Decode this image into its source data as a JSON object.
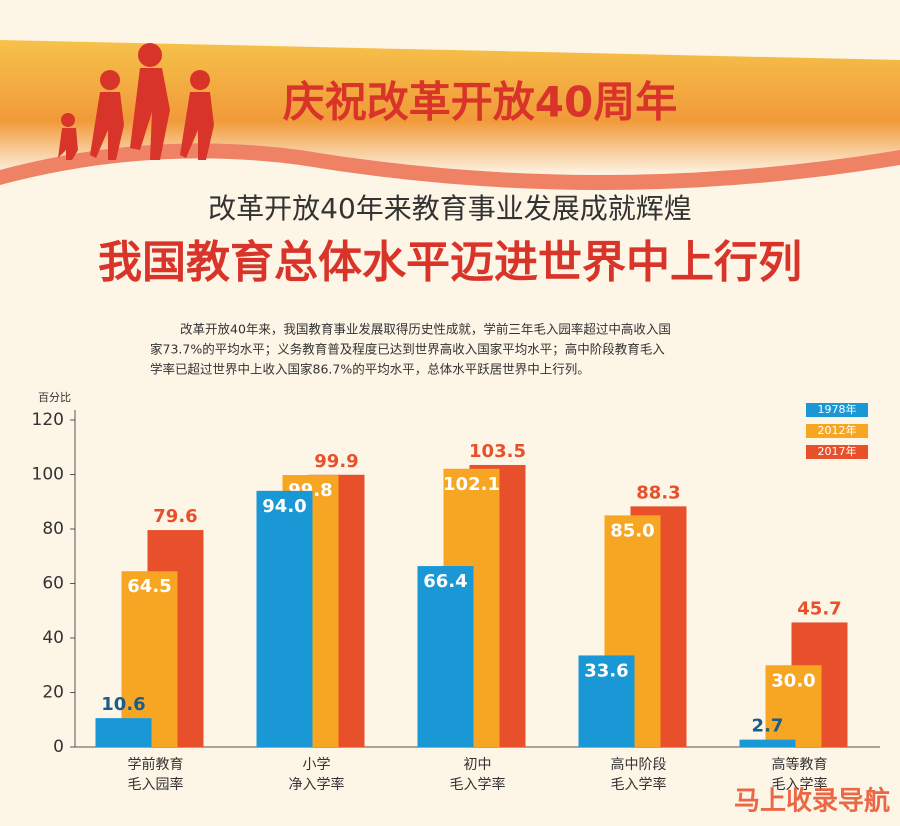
{
  "banner": "庆祝改革开放40周年",
  "subtitle": "改革开放40年来教育事业发展成就辉煌",
  "headline": "我国教育总体水平迈进世界中上行列",
  "intro": [
    "改革开放40年来，我国教育事业发展取得历史性成就，学前三年毛入园率超过中高收入国",
    "家73.7%的平均水平；义务教育普及程度已达到世界高收入国家平均水平；高中阶段教育毛入",
    "学率已超过世界中上收入国家86.7%的平均水平，总体水平跃居世界中上行列。"
  ],
  "watermark": "马上收录导航",
  "chart_data": {
    "type": "bar",
    "ylabel": "百分比",
    "categories": [
      [
        "学前教育",
        "毛入园率"
      ],
      [
        "小学",
        "净入学率"
      ],
      [
        "初中",
        "毛入学率"
      ],
      [
        "高中阶段",
        "毛入学率"
      ],
      [
        "高等教育",
        "毛入学率"
      ]
    ],
    "series": [
      {
        "name": "1978年",
        "color": "#1a98d5",
        "values": [
          10.6,
          94.0,
          66.4,
          33.6,
          2.7
        ],
        "value_labels": [
          "10.6",
          "94.0",
          "66.4",
          "33.6",
          "2.7"
        ]
      },
      {
        "name": "2012年",
        "color": "#f6a623",
        "values": [
          64.5,
          99.8,
          102.1,
          85.0,
          30.0
        ],
        "value_labels": [
          "64.5",
          "99.8",
          "102.1",
          "85.0",
          "30.0"
        ]
      },
      {
        "name": "2017年",
        "color": "#e8502c",
        "values": [
          79.6,
          99.9,
          103.5,
          88.3,
          45.7
        ],
        "value_labels": [
          "79.6",
          "99.9",
          "103.5",
          "88.3",
          "45.7"
        ]
      }
    ],
    "ylim": [
      0,
      120
    ],
    "yticks": [
      0,
      20,
      40,
      60,
      80,
      100,
      120
    ],
    "legend": "top-right"
  }
}
